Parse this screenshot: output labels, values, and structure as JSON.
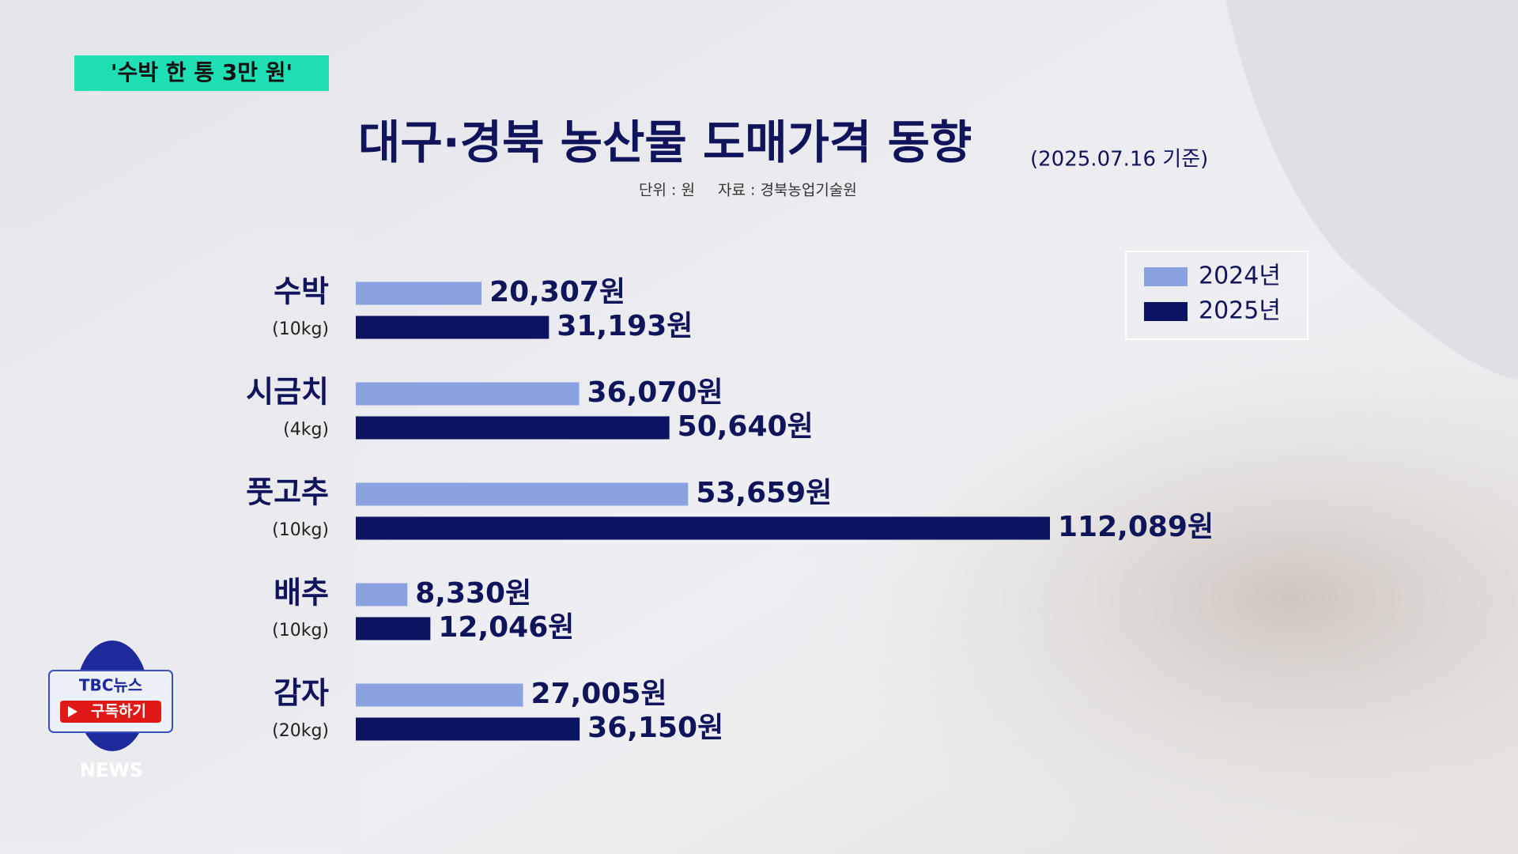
{
  "overlay": {
    "badge": "'수박 한 통 3만 원'",
    "logo_top": "TBC뉴스",
    "logo_button": "구독하기",
    "logo_bottom": "NEWS"
  },
  "chart_data": {
    "type": "hbar",
    "title": "대구·경북 농산물 도매가격 동향",
    "subtitle": "(2025.07.16 기준)",
    "unit_note": "단위 : 원",
    "source_note": "자료 : 경북농업기술원",
    "categories": [
      "수박",
      "시금치",
      "풋고추",
      "배추",
      "감자"
    ],
    "category_units": [
      "(10kg)",
      "(4kg)",
      "(10kg)",
      "(10kg)",
      "(20kg)"
    ],
    "series": [
      {
        "name": "2024년",
        "color": "#8aa2e0",
        "values": [
          20307,
          36070,
          53659,
          8330,
          27005
        ],
        "value_labels": [
          "20,307원",
          "36,070원",
          "53,659원",
          "8,330원",
          "27,005원"
        ]
      },
      {
        "name": "2025년",
        "color": "#0c1363",
        "values": [
          31193,
          50640,
          112089,
          12046,
          36150
        ],
        "value_labels": [
          "31,193원",
          "50,640원",
          "112,089원",
          "12,046원",
          "36,150원"
        ]
      }
    ],
    "legend": "top-right"
  }
}
